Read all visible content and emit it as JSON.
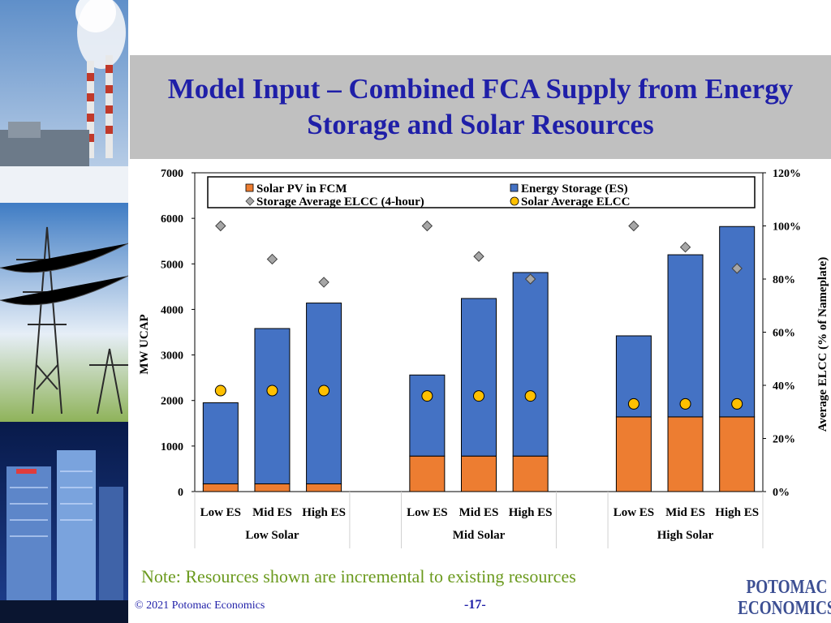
{
  "title": {
    "line1": "Model Input – Combined FCA Supply from Energy",
    "line2": "Storage and Solar Resources"
  },
  "note": "Note: Resources shown are incremental to existing resources",
  "footer": {
    "copyright": "© 2021 Potomac Economics",
    "page": "-17-",
    "logo_line1": "POTOMAC",
    "logo_line2": "ECONOMICS"
  },
  "colors": {
    "title": "#1f1fa8",
    "note": "#6b9a1e",
    "solar_bar": "#ed7d31",
    "storage_bar": "#4472c4",
    "storage_marker": "#a6a6a6",
    "solar_marker": "#ffc000",
    "title_band": "#c0c0c0"
  },
  "chart_data": {
    "type": "bar",
    "stacked": true,
    "categories": [
      {
        "group": "Low Solar",
        "label": "Low ES"
      },
      {
        "group": "Low Solar",
        "label": "Mid ES"
      },
      {
        "group": "Low Solar",
        "label": "High ES"
      },
      {
        "group": "Mid Solar",
        "label": "Low ES"
      },
      {
        "group": "Mid Solar",
        "label": "Mid ES"
      },
      {
        "group": "Mid Solar",
        "label": "High ES"
      },
      {
        "group": "High Solar",
        "label": "Low ES"
      },
      {
        "group": "High Solar",
        "label": "Mid ES"
      },
      {
        "group": "High Solar",
        "label": "High ES"
      }
    ],
    "groups": [
      "Low Solar",
      "Mid Solar",
      "High Solar"
    ],
    "series": [
      {
        "name": "Solar PV in FCM",
        "kind": "bar",
        "axis": "left",
        "color": "#ed7d31",
        "values": [
          170,
          170,
          170,
          780,
          780,
          780,
          1640,
          1640,
          1640
        ]
      },
      {
        "name": "Energy Storage (ES)",
        "kind": "bar",
        "axis": "left",
        "color": "#4472c4",
        "values": [
          1780,
          3410,
          3970,
          1780,
          3460,
          4030,
          1780,
          3560,
          4180
        ]
      },
      {
        "name": "Storage Average ELCC (4-hour)",
        "kind": "marker",
        "marker": "diamond",
        "axis": "right",
        "color": "#a6a6a6",
        "values": [
          1.0,
          0.875,
          0.788,
          1.0,
          0.885,
          0.8,
          1.0,
          0.92,
          0.84
        ]
      },
      {
        "name": "Solar Average ELCC",
        "kind": "marker",
        "marker": "circle",
        "axis": "right",
        "color": "#ffc000",
        "values": [
          0.38,
          0.38,
          0.38,
          0.36,
          0.36,
          0.36,
          0.33,
          0.33,
          0.33
        ]
      }
    ],
    "ylabel": "MW UCAP",
    "y2label": "Average ELCC (% of Nameplate)",
    "ylim": [
      0,
      7000
    ],
    "yticks": [
      "0",
      "1000",
      "2000",
      "3000",
      "4000",
      "5000",
      "6000",
      "7000"
    ],
    "y2lim": [
      0,
      1.2
    ],
    "y2ticks": [
      "0%",
      "20%",
      "40%",
      "60%",
      "80%",
      "100%",
      "120%"
    ],
    "legend": "top-center, inside plot, two columns",
    "grid": false
  }
}
